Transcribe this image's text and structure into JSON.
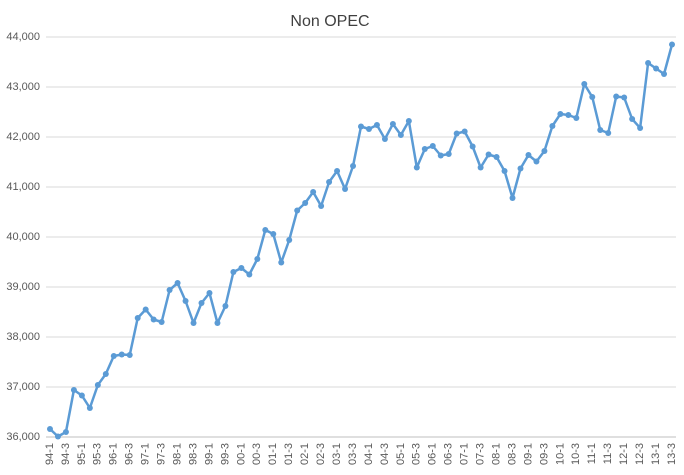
{
  "chart_data": {
    "type": "line",
    "title": "Non OPEC",
    "categories": [
      "94-1",
      null,
      "94-3",
      null,
      "95-1",
      null,
      "95-3",
      null,
      "96-1",
      null,
      "96-3",
      null,
      "97-1",
      null,
      "97-3",
      null,
      "98-1",
      null,
      "98-3",
      null,
      "99-1",
      null,
      "99-3",
      null,
      "00-1",
      null,
      "00-3",
      null,
      "01-1",
      null,
      "01-3",
      null,
      "02-1",
      null,
      "02-3",
      null,
      "03-1",
      null,
      "03-3",
      null,
      "04-1",
      null,
      "04-3",
      null,
      "05-1",
      null,
      "05-3",
      null,
      "06-1",
      null,
      "06-3",
      null,
      "07-1",
      null,
      "07-3",
      null,
      "08-1",
      null,
      "08-3",
      null,
      "09-1",
      null,
      "09-3",
      null,
      "10-1",
      null,
      "10-3",
      null,
      "11-1",
      null,
      "11-3",
      null,
      "12-1",
      null,
      "12-3",
      null,
      "13-1",
      null,
      "13-3"
    ],
    "series": [
      {
        "color": "#5b9bd5",
        "values": [
          36160,
          36010,
          36100,
          36940,
          36830,
          36580,
          37040,
          37260,
          37620,
          37650,
          37640,
          38380,
          38550,
          38350,
          38300,
          38940,
          39080,
          38720,
          38280,
          38680,
          38880,
          38280,
          38620,
          39300,
          39380,
          39250,
          39560,
          40140,
          40060,
          39490,
          39940,
          40530,
          40680,
          40900,
          40620,
          41100,
          41320,
          40960,
          41420,
          42210,
          42160,
          42240,
          41960,
          42260,
          42040,
          42320,
          41390,
          41760,
          41820,
          41630,
          41660,
          42070,
          42110,
          41810,
          41390,
          41650,
          41600,
          41320,
          40780,
          41370,
          41640,
          41510,
          41720,
          42220,
          42460,
          42440,
          42380,
          43060,
          42800,
          42140,
          42080,
          42810,
          42790,
          42360,
          42180,
          43480,
          43370,
          43260,
          43850
        ]
      }
    ],
    "ylim": [
      36000,
      44000
    ],
    "yticks": [
      {
        "value": 36000,
        "label": "36,000"
      },
      {
        "value": 37000,
        "label": "37,000"
      },
      {
        "value": 38000,
        "label": "38,000"
      },
      {
        "value": 39000,
        "label": "39,000"
      },
      {
        "value": 40000,
        "label": "40,000"
      },
      {
        "value": 41000,
        "label": "41,000"
      },
      {
        "value": 42000,
        "label": "42,000"
      },
      {
        "value": 43000,
        "label": "43,000"
      },
      {
        "value": 44000,
        "label": "44,000"
      }
    ],
    "grid": true
  }
}
